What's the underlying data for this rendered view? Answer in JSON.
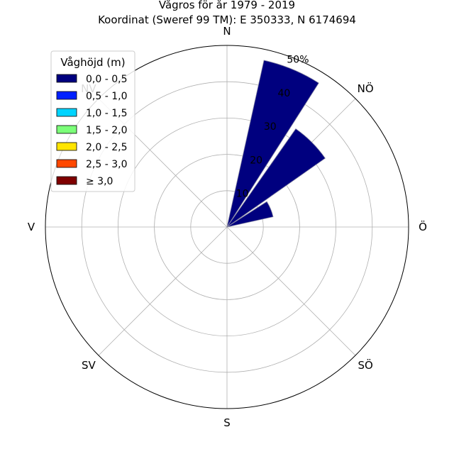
{
  "chart_data": {
    "type": "rose",
    "title_line1": "Vågros för år 1979 - 2019",
    "title_line2": "Koordinat (Sweref 99 TM): E 350333, N 6174694",
    "directions": [
      "N",
      "NÖ",
      "Ö",
      "SÖ",
      "S",
      "SV",
      "V",
      "NV"
    ],
    "radial_ticks": [
      10,
      20,
      30,
      40,
      50
    ],
    "radial_tick_labels": [
      "10",
      "20",
      "30",
      "40",
      "50%"
    ],
    "rmax": 50,
    "legend_title": "Våghöjd (m)",
    "legend_placement": "top-left",
    "bins": [
      {
        "label": "0,0 - 0,5",
        "color": "#00007f"
      },
      {
        "label": "0,5 - 1,0",
        "color": "#0020ff"
      },
      {
        "label": "1,0 - 1,5",
        "color": "#00d4ff"
      },
      {
        "label": "1,5 - 2,0",
        "color": "#7cff79"
      },
      {
        "label": "2,0 - 2,5",
        "color": "#ffe500"
      },
      {
        "label": "2,5 - 3,0",
        "color": "#ff4800"
      },
      {
        "label": "≥ 3,0",
        "color": "#7f0000"
      }
    ],
    "sectors": [
      {
        "direction_deg": 22.5,
        "width_deg": 20,
        "values": [
          47,
          0,
          0,
          0,
          0,
          0,
          0
        ]
      },
      {
        "direction_deg": 45,
        "width_deg": 20,
        "values": [
          33,
          0,
          0,
          0,
          0,
          0,
          0
        ]
      },
      {
        "direction_deg": 67.5,
        "width_deg": 20,
        "values": [
          13,
          0,
          0,
          0,
          0,
          0,
          0
        ]
      }
    ],
    "grid": true
  }
}
